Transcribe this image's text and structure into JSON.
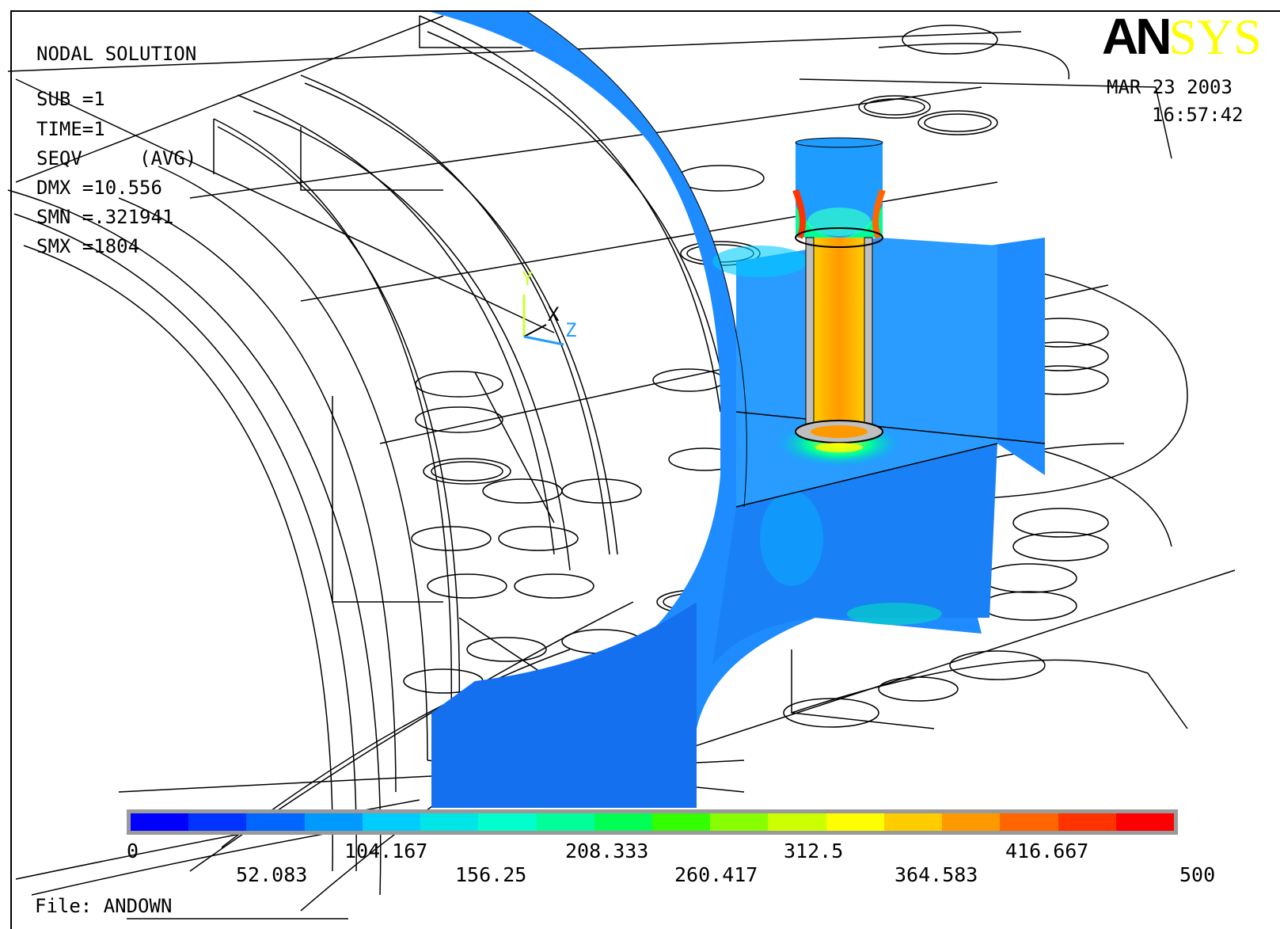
{
  "solution": {
    "title": "NODAL SOLUTION",
    "lines": [
      "SUB =1",
      "TIME=1",
      "SEQV     (AVG)",
      "DMX =10.556",
      "SMN =.321941",
      "SMX =1804"
    ]
  },
  "logo": {
    "part1": "AN",
    "part2": "SYS"
  },
  "datetime": {
    "date": "MAR 23 2003",
    "time": "16:57:42"
  },
  "triad": {
    "y": "Y",
    "x": "X",
    "z": "Z"
  },
  "legend": {
    "top_ticks": [
      "0",
      "104.167",
      "208.333",
      "312.5",
      "416.667"
    ],
    "bottom_ticks": [
      "52.083",
      "156.25",
      "260.417",
      "364.583",
      "500"
    ],
    "colors": [
      "#0000ff",
      "#0033ff",
      "#0066ff",
      "#0099ff",
      "#00ccff",
      "#00e6e6",
      "#00ffcc",
      "#00ff99",
      "#00ff55",
      "#33ff00",
      "#88ff00",
      "#ccff00",
      "#ffff00",
      "#ffcc00",
      "#ff9900",
      "#ff6600",
      "#ff3300",
      "#ff0000"
    ]
  },
  "file": "File: ANDOWN"
}
